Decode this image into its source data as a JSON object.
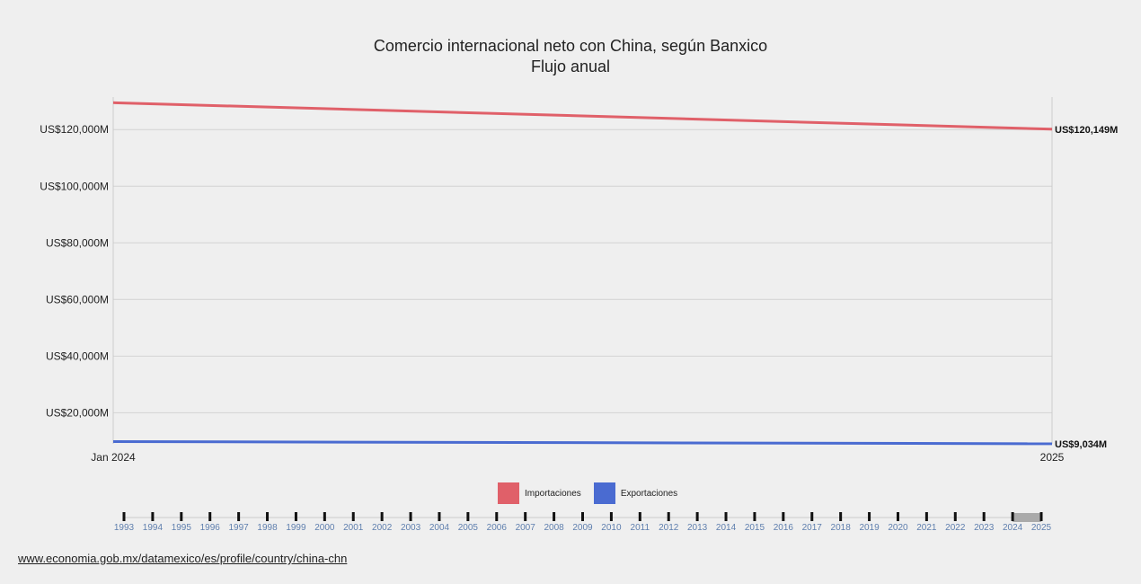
{
  "chart_data": {
    "type": "line",
    "title": "Comercio internacional neto con China, según Banxico",
    "subtitle": "Flujo anual",
    "x_ticks": [
      "Jan 2024",
      "2025"
    ],
    "y_ticks": [
      "US$20,000M",
      "US$40,000M",
      "US$60,000M",
      "US$80,000M",
      "US$100,000M",
      "US$120,000M"
    ],
    "y_tick_values": [
      20000,
      40000,
      60000,
      80000,
      100000,
      120000
    ],
    "ylim": [
      9000,
      131500
    ],
    "grid": true,
    "legend_placement": "bottom-center",
    "series": [
      {
        "name": "Importaciones",
        "color": "#e06069",
        "values": [
          129500,
          120149
        ],
        "end_label": "US$120,149M"
      },
      {
        "name": "Exportaciones",
        "color": "#4a6bd1",
        "values": [
          9800,
          9034
        ],
        "end_label": "US$9,034M"
      }
    ]
  },
  "timeline": {
    "years": [
      "1993",
      "1994",
      "1995",
      "1996",
      "1997",
      "1998",
      "1999",
      "2000",
      "2001",
      "2002",
      "2003",
      "2004",
      "2005",
      "2006",
      "2007",
      "2008",
      "2009",
      "2010",
      "2011",
      "2012",
      "2013",
      "2014",
      "2015",
      "2016",
      "2017",
      "2018",
      "2019",
      "2020",
      "2021",
      "2022",
      "2023",
      "2024",
      "2025"
    ],
    "selected": [
      "2024",
      "2025"
    ],
    "selection_color": "#aaaaaa"
  },
  "source_link": "www.economia.gob.mx/datamexico/es/profile/country/china-chn"
}
